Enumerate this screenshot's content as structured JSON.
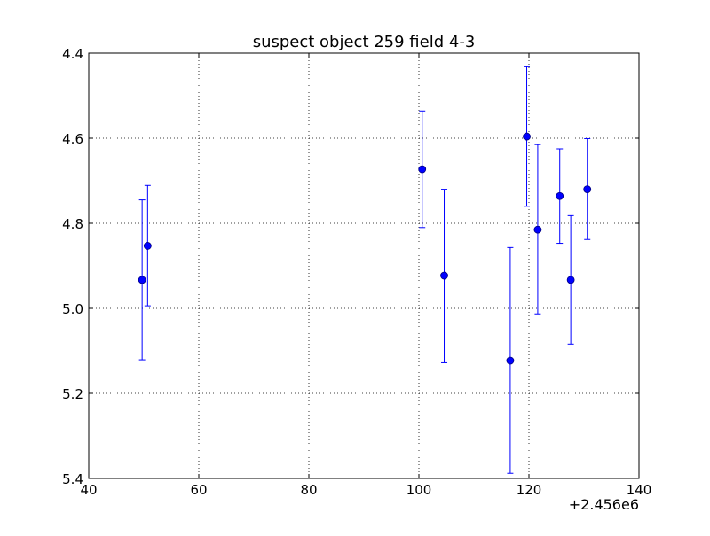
{
  "chart_data": {
    "type": "scatter",
    "title": "suspect object 259 field 4-3",
    "xlabel": "",
    "ylabel": "",
    "x_offset_label": "+2.456e6",
    "xlim": [
      40,
      140
    ],
    "ylim": [
      5.4,
      4.4
    ],
    "y_inverted": true,
    "x_ticks": [
      "40",
      "60",
      "80",
      "100",
      "120",
      "140"
    ],
    "y_ticks": [
      "4.4",
      "4.6",
      "4.8",
      "5.0",
      "5.2",
      "5.4"
    ],
    "grid": true,
    "series": [
      {
        "marker": "circle",
        "error_bars": "vertical",
        "points": [
          {
            "x": 49.7,
            "y": 4.933,
            "y_err_low": 4.745,
            "y_err_high": 5.121
          },
          {
            "x": 50.7,
            "y": 4.853,
            "y_err_low": 4.711,
            "y_err_high": 4.994
          },
          {
            "x": 100.6,
            "y": 4.673,
            "y_err_low": 4.536,
            "y_err_high": 4.81
          },
          {
            "x": 104.6,
            "y": 4.923,
            "y_err_low": 4.72,
            "y_err_high": 5.128
          },
          {
            "x": 116.6,
            "y": 5.123,
            "y_err_low": 4.857,
            "y_err_high": 5.388
          },
          {
            "x": 119.6,
            "y": 4.596,
            "y_err_low": 4.432,
            "y_err_high": 4.76
          },
          {
            "x": 121.6,
            "y": 4.815,
            "y_err_low": 4.615,
            "y_err_high": 5.013
          },
          {
            "x": 125.6,
            "y": 4.736,
            "y_err_low": 4.625,
            "y_err_high": 4.847
          },
          {
            "x": 127.6,
            "y": 4.933,
            "y_err_low": 4.782,
            "y_err_high": 5.084
          },
          {
            "x": 130.6,
            "y": 4.72,
            "y_err_low": 4.601,
            "y_err_high": 4.838
          }
        ]
      }
    ]
  },
  "colors": {
    "series": "#0000ff",
    "marker_edge": "#000080",
    "grid": "#000000",
    "axes": "#000000"
  }
}
